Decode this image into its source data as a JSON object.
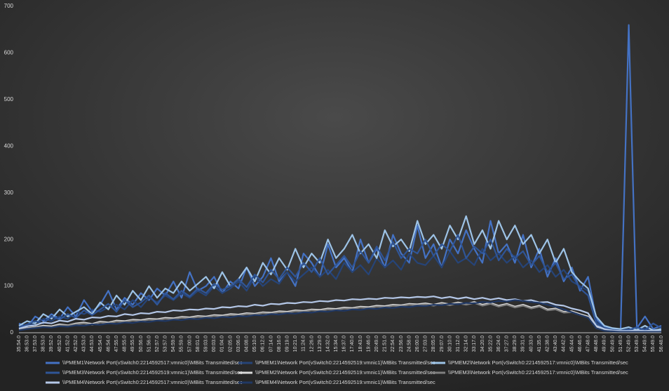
{
  "chart_data": {
    "type": "line",
    "categories": [
      "35:54.0",
      "36:53.0",
      "37:53.0",
      "38:53.0",
      "39:52.0",
      "40:52.0",
      "41:52.0",
      "42:52.0",
      "43:53.0",
      "44:53.0",
      "45:54.0",
      "46:54.0",
      "47:55.0",
      "48:55.0",
      "49:55.0",
      "50:56.0",
      "51:56.0",
      "52:57.0",
      "53:57.0",
      "54:59.0",
      "55:59.0",
      "57:00.0",
      "58:01.0",
      "59:03.0",
      "00:03.0",
      "01:04.0",
      "02:05.0",
      "03:06.0",
      "04:08.0",
      "05:10.0",
      "06:12.0",
      "07:14.0",
      "08:16.0",
      "09:19.0",
      "10:21.0",
      "11:24.0",
      "12:26.0",
      "13:29.0",
      "14:32.0",
      "15:34.0",
      "16:37.0",
      "17:40.0",
      "18:43.0",
      "19:46.0",
      "20:49.0",
      "21:51.0",
      "22:54.0",
      "23:56.0",
      "24:58.0",
      "26:00.0",
      "27:03.0",
      "28:05.0",
      "29:07.0",
      "30:10.0",
      "31:12.0",
      "32:14.0",
      "33:17.0",
      "34:20.0",
      "35:22.0",
      "36:24.0",
      "37:27.0",
      "38:29.0",
      "39:31.0",
      "40:33.0",
      "41:35.0",
      "42:38.0",
      "43:40.0",
      "44:42.0",
      "45:44.0",
      "46:46.0",
      "47:48.0",
      "48:48.0",
      "49:49.0",
      "50:49.0",
      "51:49.0",
      "52:49.0",
      "53:49.0",
      "54:49.0",
      "55:49.0",
      "56:48.0"
    ],
    "series": [
      {
        "name": "\\\\PMEM1\\Network Port(vSwitch0:2214592517:vmnic0)\\MBits Transmitted/sec",
        "color": "#4472c4",
        "values": [
          20,
          12,
          35,
          25,
          40,
          30,
          55,
          35,
          70,
          45,
          60,
          90,
          50,
          75,
          60,
          85,
          70,
          95,
          80,
          110,
          75,
          130,
          90,
          100,
          120,
          85,
          110,
          95,
          140,
          100,
          120,
          160,
          110,
          130,
          100,
          170,
          150,
          120,
          190,
          140,
          160,
          130,
          200,
          150,
          180,
          140,
          210,
          170,
          150,
          230,
          160,
          190,
          140,
          200,
          170,
          220,
          180,
          150,
          240,
          170,
          190,
          150,
          210,
          140,
          180,
          120,
          160,
          110,
          140,
          90,
          120,
          30,
          12,
          8,
          6,
          660,
          10,
          35,
          8,
          15
        ]
      },
      {
        "name": "\\\\PMEM1\\Network Port(vSwitch0:2214592519:vmnic1)\\MBits Transmitted/sec",
        "color": "#264478",
        "values": [
          10,
          15,
          20,
          30,
          25,
          35,
          30,
          45,
          40,
          50,
          45,
          55,
          60,
          50,
          70,
          55,
          75,
          65,
          80,
          70,
          85,
          75,
          90,
          80,
          100,
          85,
          95,
          110,
          90,
          120,
          100,
          115,
          105,
          130,
          110,
          125,
          140,
          120,
          135,
          115,
          150,
          130,
          145,
          125,
          160,
          140,
          155,
          135,
          170,
          150,
          145,
          165,
          140,
          175,
          150,
          160,
          145,
          180,
          155,
          170,
          150,
          165,
          140,
          155,
          130,
          145,
          120,
          135,
          110,
          100,
          90,
          25,
          10,
          6,
          5,
          8,
          5,
          10,
          4,
          6
        ]
      },
      {
        "name": "\\\\PMEM2\\Network Port(vSwitch0:2214592517:vmnic0)\\MBits Transmitted/sec",
        "color": "#9dc3e6",
        "values": [
          15,
          25,
          20,
          40,
          30,
          50,
          35,
          45,
          55,
          40,
          65,
          50,
          80,
          60,
          90,
          70,
          100,
          75,
          95,
          85,
          110,
          90,
          105,
          120,
          95,
          130,
          100,
          115,
          140,
          110,
          150,
          125,
          160,
          135,
          180,
          140,
          170,
          150,
          200,
          160,
          180,
          210,
          170,
          190,
          160,
          220,
          185,
          200,
          175,
          240,
          190,
          210,
          180,
          230,
          200,
          250,
          190,
          220,
          180,
          240,
          200,
          230,
          190,
          210,
          170,
          200,
          150,
          180,
          130,
          110,
          95,
          35,
          15,
          10,
          8,
          12,
          6,
          15,
          5,
          8
        ]
      },
      {
        "name": "\\\\PMEM3\\Network Port(vSwitch0:2214592519:vmnic1)\\MBits Transmitted/sec",
        "color": "#2f5597",
        "values": [
          12,
          18,
          25,
          20,
          35,
          28,
          40,
          32,
          48,
          38,
          50,
          62,
          45,
          70,
          55,
          65,
          80,
          60,
          85,
          72,
          90,
          78,
          95,
          85,
          105,
          92,
          100,
          115,
          98,
          125,
          108,
          135,
          115,
          140,
          120,
          150,
          130,
          160,
          125,
          145,
          165,
          140,
          175,
          150,
          185,
          155,
          195,
          160,
          180,
          170,
          200,
          165,
          190,
          175,
          210,
          160,
          185,
          170,
          200,
          155,
          180,
          160,
          175,
          145,
          165,
          130,
          150,
          115,
          125,
          95,
          80,
          20,
          8,
          5,
          4,
          6,
          12,
          5,
          20,
          10
        ]
      },
      {
        "name": "\\\\PMEM2\\Network Port(vSwitch0:2214592519:vmnic1)\\MBits Transmitted/sec",
        "color": "#d9d9d9",
        "values": [
          8,
          10,
          12,
          15,
          14,
          18,
          16,
          20,
          22,
          19,
          24,
          22,
          26,
          25,
          28,
          27,
          30,
          29,
          32,
          31,
          34,
          33,
          36,
          35,
          38,
          37,
          40,
          39,
          42,
          41,
          44,
          43,
          46,
          45,
          48,
          47,
          50,
          49,
          52,
          51,
          54,
          53,
          56,
          55,
          58,
          57,
          60,
          59,
          62,
          61,
          63,
          60,
          64,
          61,
          65,
          62,
          66,
          60,
          64,
          58,
          62,
          56,
          60,
          54,
          58,
          50,
          52,
          45,
          46,
          40,
          35,
          12,
          6,
          4,
          3,
          3,
          4,
          3,
          4,
          3
        ]
      },
      {
        "name": "\\\\PMEM3\\Network Port(vSwitch0:2214592517:vmnic0)\\MBits Transmitted/sec",
        "color": "#7f7f7f",
        "values": [
          6,
          9,
          11,
          13,
          12,
          16,
          15,
          18,
          20,
          17,
          22,
          20,
          24,
          23,
          26,
          25,
          28,
          27,
          30,
          29,
          32,
          31,
          34,
          33,
          36,
          35,
          38,
          37,
          40,
          39,
          42,
          41,
          44,
          43,
          46,
          45,
          48,
          47,
          50,
          49,
          52,
          51,
          54,
          53,
          56,
          55,
          58,
          57,
          60,
          59,
          61,
          58,
          62,
          59,
          63,
          60,
          64,
          58,
          62,
          56,
          60,
          54,
          58,
          52,
          56,
          48,
          50,
          43,
          44,
          38,
          33,
          10,
          5,
          3,
          2,
          2,
          3,
          2,
          3,
          2
        ]
      },
      {
        "name": "\\\\PMEM4\\Network Port(vSwitch0:2214592517:vmnic0)\\MBits Transmitted/sec",
        "color": "#b4c7e7",
        "values": [
          9,
          14,
          16,
          22,
          20,
          26,
          24,
          30,
          28,
          33,
          32,
          36,
          35,
          40,
          38,
          42,
          41,
          45,
          44,
          48,
          47,
          50,
          49,
          52,
          51,
          55,
          54,
          57,
          56,
          60,
          58,
          62,
          61,
          64,
          63,
          66,
          65,
          68,
          67,
          70,
          69,
          72,
          71,
          73,
          72,
          75,
          74,
          76,
          75,
          77,
          76,
          78,
          74,
          77,
          73,
          76,
          72,
          75,
          71,
          74,
          70,
          72,
          68,
          70,
          65,
          66,
          60,
          58,
          52,
          48,
          42,
          15,
          8,
          5,
          4,
          4,
          5,
          4,
          5,
          4
        ]
      },
      {
        "name": "\\\\PMEM4\\Network Port(vSwitch0:2214592519:vmnic1)\\MBits Transmitted/sec",
        "color": "#203864",
        "values": [
          5,
          8,
          10,
          12,
          11,
          14,
          13,
          16,
          15,
          18,
          17,
          20,
          19,
          22,
          21,
          24,
          23,
          26,
          25,
          28,
          27,
          30,
          29,
          32,
          31,
          34,
          33,
          36,
          35,
          38,
          37,
          40,
          39,
          42,
          41,
          44,
          43,
          46,
          45,
          48,
          47,
          50,
          49,
          52,
          51,
          54,
          53,
          56,
          55,
          58,
          57,
          60,
          59,
          62,
          61,
          64,
          63,
          66,
          65,
          68,
          67,
          70,
          68,
          66,
          64,
          60,
          56,
          50,
          44,
          38,
          32,
          10,
          4,
          3,
          2,
          2,
          2,
          2,
          2,
          2
        ]
      }
    ],
    "ylim": [
      0,
      700
    ],
    "yticks": [
      0,
      100,
      200,
      300,
      400,
      500,
      600,
      700
    ],
    "grid": false,
    "legend": "bottom"
  }
}
